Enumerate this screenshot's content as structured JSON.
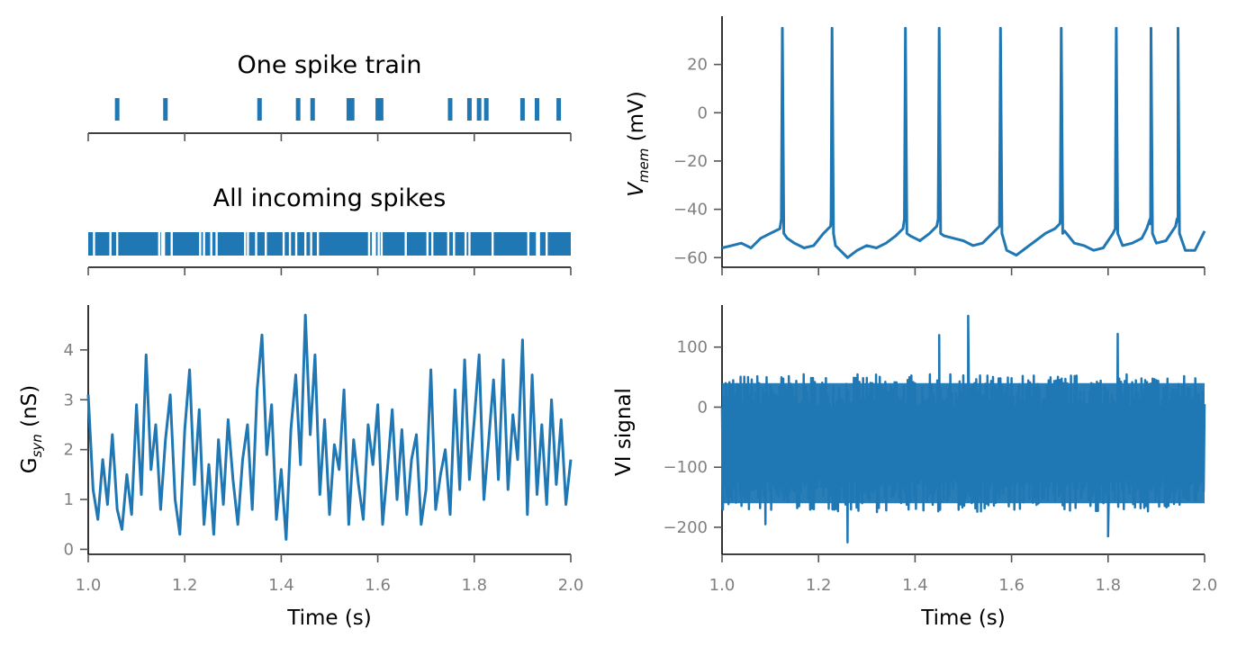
{
  "figure": {
    "accent": "#1f77b4"
  },
  "chart_data": [
    {
      "type": "raster",
      "title": "One spike train",
      "xlim": [
        1.0,
        2.0
      ],
      "spike_times": [
        1.06,
        1.16,
        1.355,
        1.435,
        1.465,
        1.54,
        1.547,
        1.6,
        1.607,
        1.75,
        1.79,
        1.81,
        1.825,
        1.9,
        1.93,
        1.975
      ]
    },
    {
      "type": "raster",
      "title": "All incoming spikes",
      "xlim": [
        1.0,
        2.0
      ],
      "gaps": [
        1.012,
        1.046,
        1.06,
        1.147,
        1.153,
        1.157,
        1.173,
        1.232,
        1.24,
        1.255,
        1.266,
        1.325,
        1.331,
        1.348,
        1.368,
        1.405,
        1.418,
        1.431,
        1.45,
        1.462,
        1.476,
        1.582,
        1.59,
        1.594,
        1.602,
        1.608,
        1.658,
        1.703,
        1.713,
        1.746,
        1.758,
        1.782,
        1.79,
        1.838,
        1.912,
        1.93,
        1.934,
        1.95
      ]
    },
    {
      "type": "line",
      "ylabel": "G_syn (nS)",
      "xlabel": "Time (s)",
      "xlim": [
        1.0,
        2.0
      ],
      "ylim": [
        -0.1,
        4.9
      ],
      "xticks": [
        "1.0",
        "1.2",
        "1.4",
        "1.6",
        "1.8",
        "2.0"
      ],
      "yticks": [
        "0",
        "1",
        "2",
        "3",
        "4"
      ],
      "x": [
        1.0,
        1.01,
        1.02,
        1.03,
        1.04,
        1.05,
        1.06,
        1.07,
        1.08,
        1.09,
        1.1,
        1.11,
        1.12,
        1.13,
        1.14,
        1.15,
        1.16,
        1.17,
        1.18,
        1.19,
        1.2,
        1.21,
        1.22,
        1.23,
        1.24,
        1.25,
        1.26,
        1.27,
        1.28,
        1.29,
        1.3,
        1.31,
        1.32,
        1.33,
        1.34,
        1.35,
        1.36,
        1.37,
        1.38,
        1.39,
        1.4,
        1.41,
        1.42,
        1.43,
        1.44,
        1.45,
        1.46,
        1.47,
        1.48,
        1.49,
        1.5,
        1.51,
        1.52,
        1.53,
        1.54,
        1.55,
        1.56,
        1.57,
        1.58,
        1.59,
        1.6,
        1.61,
        1.62,
        1.63,
        1.64,
        1.65,
        1.66,
        1.67,
        1.68,
        1.69,
        1.7,
        1.71,
        1.72,
        1.73,
        1.74,
        1.75,
        1.76,
        1.77,
        1.78,
        1.79,
        1.8,
        1.81,
        1.82,
        1.83,
        1.84,
        1.85,
        1.86,
        1.87,
        1.88,
        1.89,
        1.9,
        1.91,
        1.92,
        1.93,
        1.94,
        1.95,
        1.96,
        1.97,
        1.98,
        1.99,
        2.0
      ],
      "values": [
        3.1,
        1.2,
        0.6,
        1.8,
        0.9,
        2.3,
        0.8,
        0.4,
        1.5,
        0.7,
        2.9,
        1.1,
        3.9,
        1.6,
        2.5,
        0.8,
        2.2,
        3.1,
        1.0,
        0.3,
        2.4,
        3.6,
        1.3,
        2.8,
        0.5,
        1.7,
        0.3,
        2.2,
        0.9,
        2.6,
        1.4,
        0.5,
        1.8,
        2.5,
        0.8,
        3.2,
        4.3,
        1.9,
        2.9,
        0.6,
        1.6,
        0.2,
        2.4,
        3.5,
        1.7,
        4.7,
        2.3,
        3.9,
        1.1,
        2.6,
        0.7,
        2.1,
        1.6,
        3.2,
        0.5,
        2.2,
        1.3,
        0.6,
        2.5,
        1.7,
        2.9,
        0.5,
        1.6,
        2.8,
        1.0,
        2.4,
        0.7,
        1.8,
        2.3,
        0.5,
        1.2,
        3.6,
        0.8,
        1.5,
        2.0,
        0.7,
        3.2,
        1.2,
        3.8,
        1.4,
        2.6,
        3.9,
        1.0,
        2.2,
        3.4,
        1.4,
        3.8,
        1.2,
        2.7,
        1.8,
        4.2,
        0.7,
        3.5,
        1.1,
        2.5,
        0.9,
        3.0,
        1.3,
        2.6,
        0.9,
        1.8
      ]
    },
    {
      "type": "line",
      "ylabel": "V_mem (mV)",
      "xlim": [
        1.0,
        2.0
      ],
      "ylim": [
        -64,
        40
      ],
      "xticks": [
        "1.0",
        "1.2",
        "1.4",
        "1.6",
        "1.8",
        "2.0"
      ],
      "yticks": [
        "20",
        "0",
        "−20",
        "−40",
        "−60"
      ],
      "ytick_values": [
        20,
        0,
        -20,
        -40,
        -60
      ],
      "rest": [
        [
          1.0,
          -56
        ],
        [
          1.02,
          -55
        ],
        [
          1.04,
          -54
        ],
        [
          1.06,
          -56
        ],
        [
          1.08,
          -52
        ],
        [
          1.1,
          -50
        ],
        [
          1.12,
          -48
        ],
        [
          1.135,
          -52
        ],
        [
          1.15,
          -54
        ],
        [
          1.17,
          -56
        ],
        [
          1.19,
          -55
        ],
        [
          1.21,
          -50
        ],
        [
          1.225,
          -47
        ],
        [
          1.235,
          -55
        ],
        [
          1.25,
          -58
        ],
        [
          1.26,
          -60
        ],
        [
          1.28,
          -57
        ],
        [
          1.3,
          -55
        ],
        [
          1.32,
          -56
        ],
        [
          1.34,
          -54
        ],
        [
          1.36,
          -51
        ],
        [
          1.375,
          -48
        ],
        [
          1.39,
          -51
        ],
        [
          1.41,
          -53
        ],
        [
          1.43,
          -50
        ],
        [
          1.445,
          -47
        ],
        [
          1.46,
          -51
        ],
        [
          1.48,
          -52
        ],
        [
          1.5,
          -53
        ],
        [
          1.52,
          -55
        ],
        [
          1.54,
          -54
        ],
        [
          1.56,
          -50
        ],
        [
          1.575,
          -47
        ],
        [
          1.59,
          -57
        ],
        [
          1.61,
          -59
        ],
        [
          1.63,
          -56
        ],
        [
          1.65,
          -53
        ],
        [
          1.67,
          -50
        ],
        [
          1.69,
          -48
        ],
        [
          1.7,
          -46
        ],
        [
          1.71,
          -49
        ],
        [
          1.73,
          -54
        ],
        [
          1.75,
          -55
        ],
        [
          1.77,
          -57
        ],
        [
          1.79,
          -56
        ],
        [
          1.81,
          -50
        ],
        [
          1.815,
          -48
        ],
        [
          1.83,
          -55
        ],
        [
          1.85,
          -54
        ],
        [
          1.87,
          -52
        ],
        [
          1.88,
          -48
        ],
        [
          1.888,
          -46
        ],
        [
          1.9,
          -54
        ],
        [
          1.92,
          -53
        ],
        [
          1.94,
          -47
        ],
        [
          1.945,
          -45
        ],
        [
          1.96,
          -57
        ],
        [
          1.98,
          -57
        ],
        [
          2.0,
          -49
        ]
      ],
      "spikes": [
        1.125,
        1.228,
        1.38,
        1.45,
        1.577,
        1.703,
        1.817,
        1.889,
        1.945
      ],
      "spike_peak": 35
    },
    {
      "type": "line",
      "ylabel": "VI signal",
      "xlabel": "Time (s)",
      "xlim": [
        1.0,
        2.0
      ],
      "ylim": [
        -245,
        170
      ],
      "xticks": [
        "1.0",
        "1.2",
        "1.4",
        "1.6",
        "1.8",
        "2.0"
      ],
      "yticks": [
        "100",
        "0",
        "−100",
        "−200"
      ],
      "ytick_values": [
        100,
        0,
        -100,
        -200
      ],
      "center": -60,
      "typical_max": 40,
      "typical_min": -160,
      "extremes": [
        [
          1.51,
          152
        ],
        [
          1.26,
          -225
        ],
        [
          1.8,
          -215
        ],
        [
          1.45,
          120
        ],
        [
          1.82,
          122
        ],
        [
          1.09,
          -195
        ]
      ]
    }
  ]
}
